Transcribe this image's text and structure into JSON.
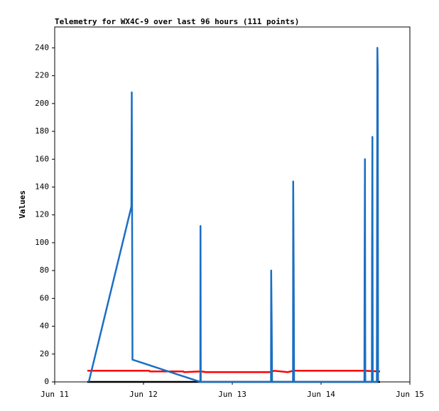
{
  "chart_data": {
    "type": "line",
    "title": "Telemetry for WX4C-9 over last 96 hours (111 points)",
    "y_label": "Values",
    "xlim": [
      0,
      4
    ],
    "xticks": [
      {
        "value": 0,
        "label": "Jun 11"
      },
      {
        "value": 1,
        "label": "Jun 12"
      },
      {
        "value": 2,
        "label": "Jun 13"
      },
      {
        "value": 3,
        "label": "Jun 14"
      },
      {
        "value": 4,
        "label": "Jun 15"
      }
    ],
    "ylim": [
      0,
      255
    ],
    "yticks": [
      0,
      20,
      40,
      60,
      80,
      100,
      120,
      140,
      160,
      180,
      200,
      220,
      240
    ],
    "series": [
      {
        "color": "#000000",
        "x": [
          0.368,
          3.664
        ],
        "values": [
          0,
          0
        ]
      },
      {
        "color": "#ff0000",
        "x": [
          0.368,
          1.064,
          1.072,
          1.448,
          1.456,
          1.648,
          1.704,
          2.424,
          2.472,
          2.624,
          2.688,
          3.48,
          3.664
        ],
        "values": [
          8,
          8,
          7.5,
          7.5,
          7,
          7.5,
          7,
          7,
          8,
          7,
          8,
          8,
          7.5
        ]
      },
      {
        "color": "#1a6fc4",
        "x": [
          0.384,
          0.864,
          0.868,
          0.876,
          1.64,
          1.642,
          1.645,
          2.436,
          2.438,
          2.444,
          2.448,
          2.684,
          2.686,
          2.692,
          2.696,
          3.488,
          3.49,
          3.494,
          3.498,
          3.572,
          3.574,
          3.578,
          3.582,
          3.628,
          3.63,
          3.634,
          3.638,
          3.642
        ],
        "values": [
          0,
          126,
          208,
          16,
          0,
          112,
          0,
          0,
          80,
          40,
          0,
          0,
          144,
          72,
          0,
          0,
          80,
          160,
          0,
          0,
          88,
          176,
          0,
          0,
          80,
          240,
          224,
          0
        ]
      }
    ]
  }
}
